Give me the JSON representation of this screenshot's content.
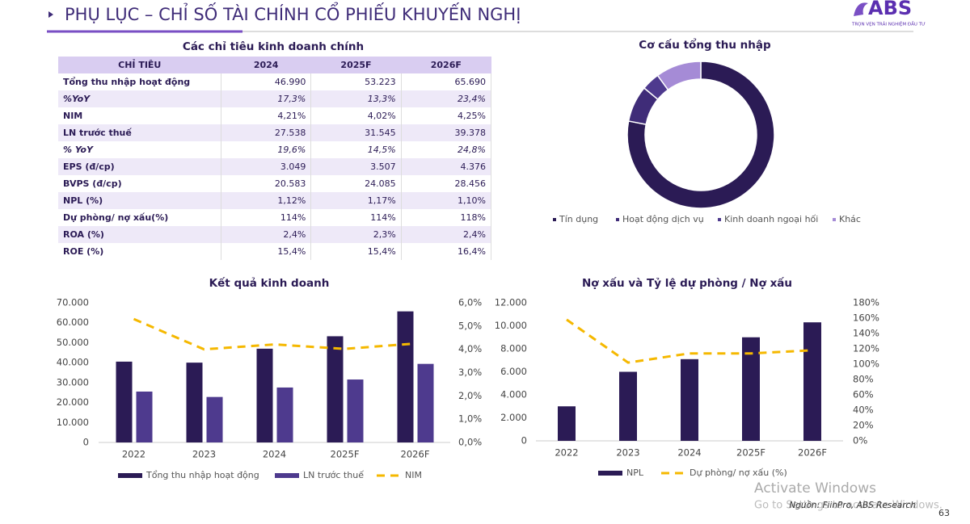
{
  "header": {
    "title": "PHỤ LỤC – CHỈ SỐ TÀI CHÍNH CỔ PHIẾU KHUYẾN NGHỊ",
    "logo": "ABS",
    "tagline": "TRỌN VẸN TRẢI NGHIỆM ĐẦU TƯ"
  },
  "table": {
    "title": "Các chỉ tiêu kinh doanh chính",
    "columns": [
      "CHỈ TIÊU",
      "2024",
      "2025F",
      "2026F"
    ],
    "rows": [
      [
        "Tổng thu nhập hoạt động",
        "46.990",
        "53.223",
        "65.690"
      ],
      [
        "%YoY",
        "17,3%",
        "13,3%",
        "23,4%"
      ],
      [
        "NIM",
        "4,21%",
        "4,02%",
        "4,25%"
      ],
      [
        "LN trước thuế",
        "27.538",
        "31.545",
        "39.378"
      ],
      [
        "% YoY",
        "19,6%",
        "14,5%",
        "24,8%"
      ],
      [
        "EPS (đ/cp)",
        "3.049",
        "3.507",
        "4.376"
      ],
      [
        "BVPS (đ/cp)",
        "20.583",
        "24.085",
        "28.456"
      ],
      [
        "NPL (%)",
        "1,12%",
        "1,17%",
        "1,10%"
      ],
      [
        "Dự phòng/ nợ xấu(%)",
        "114%",
        "114%",
        "118%"
      ],
      [
        "ROA (%)",
        "2,4%",
        "2,3%",
        "2,4%"
      ],
      [
        "ROE (%)",
        "15,4%",
        "15,4%",
        "16,4%"
      ]
    ]
  },
  "chart_data": [
    {
      "type": "donut",
      "title": "Cơ cấu tổng thu nhập",
      "categories": [
        "Tín dụng",
        "Hoạt động dịch vụ",
        "Kinh doanh ngoại hối",
        "Khác"
      ],
      "values": [
        78,
        8,
        4,
        10
      ],
      "colors": [
        "#2b1b55",
        "#3f2c78",
        "#4e3a8e",
        "#a58bd6"
      ]
    },
    {
      "type": "combo",
      "title": "Kết quả kinh doanh",
      "categories": [
        "2022",
        "2023",
        "2024",
        "2025F",
        "2026F"
      ],
      "series": [
        {
          "name": "Tổng thu nhập hoạt động",
          "type": "bar",
          "color": "#2b1b55",
          "values": [
            40500,
            40000,
            46990,
            53223,
            65690
          ]
        },
        {
          "name": "LN trước thuế",
          "type": "bar",
          "color": "#4e3a8e",
          "values": [
            25500,
            22800,
            27538,
            31545,
            39378
          ]
        },
        {
          "name": "NIM",
          "type": "line",
          "axis": "y2",
          "color": "#f5b800",
          "values": [
            5.3,
            4.0,
            4.21,
            4.02,
            4.25
          ]
        }
      ],
      "ylim": [
        0,
        70000
      ],
      "yticks": [
        0,
        {
          "value": 10000,
          "label": "10.000"
        },
        {
          "value": 20000,
          "label": "20.000"
        },
        {
          "value": 30000,
          "label": "30.000"
        },
        {
          "value": 40000,
          "label": "40.000"
        },
        {
          "value": 50000,
          "label": "50.000"
        },
        {
          "value": 60000,
          "label": "60.000"
        },
        {
          "value": 70000,
          "label": "70.000"
        }
      ],
      "y2lim": [
        0,
        6
      ],
      "y2ticks": [
        {
          "value": 0,
          "label": "0,0%"
        },
        {
          "value": 1,
          "label": "1,0%"
        },
        {
          "value": 2,
          "label": "2,0%"
        },
        {
          "value": 3,
          "label": "3,0%"
        },
        {
          "value": 4,
          "label": "4,0%"
        },
        {
          "value": 5,
          "label": "5,0%"
        },
        {
          "value": 6,
          "label": "6,0%"
        }
      ]
    },
    {
      "type": "combo",
      "title": "Nợ xấu và Tỷ lệ dự phòng / Nợ xấu",
      "categories": [
        "2022",
        "2023",
        "2024",
        "2025F",
        "2026F"
      ],
      "series": [
        {
          "name": "NPL",
          "type": "bar",
          "color": "#2b1b55",
          "values": [
            3000,
            6000,
            7100,
            9000,
            10300
          ]
        },
        {
          "name": "Dự phòng/ nợ xấu (%)",
          "type": "line",
          "axis": "y2",
          "color": "#f5b800",
          "values": [
            158,
            102,
            114,
            114,
            118
          ]
        }
      ],
      "ylim": [
        0,
        12000
      ],
      "yticks": [
        0,
        {
          "value": 2000,
          "label": "2.000"
        },
        {
          "value": 4000,
          "label": "4.000"
        },
        {
          "value": 6000,
          "label": "6.000"
        },
        {
          "value": 8000,
          "label": "8.000"
        },
        {
          "value": 10000,
          "label": "10.000"
        },
        {
          "value": 12000,
          "label": "12.000"
        }
      ],
      "y2lim": [
        0,
        180
      ],
      "y2ticks": [
        {
          "value": 0,
          "label": "0%"
        },
        {
          "value": 20,
          "label": "20%"
        },
        {
          "value": 40,
          "label": "40%"
        },
        {
          "value": 60,
          "label": "60%"
        },
        {
          "value": 80,
          "label": "80%"
        },
        {
          "value": 100,
          "label": "100%"
        },
        {
          "value": 120,
          "label": "120%"
        },
        {
          "value": 140,
          "label": "140%"
        },
        {
          "value": 160,
          "label": "160%"
        },
        {
          "value": 180,
          "label": "180%"
        }
      ]
    }
  ],
  "footer": {
    "source": "Nguồn: FiinPro, ABS Research",
    "page": "63",
    "watermark": "Activate Windows",
    "watermark_hint": "Go to Settings to activate Windows."
  }
}
